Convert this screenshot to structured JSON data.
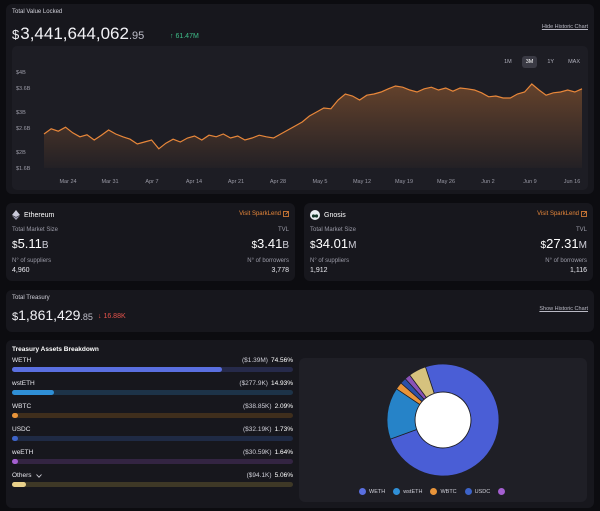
{
  "tvl": {
    "label": "Total Value Locked",
    "currency": "$",
    "value_main": "3,441,644,062",
    "value_decimals": ".95",
    "delta": "↑ 61.47M",
    "hide_chart_label": "Hide Historic Chart",
    "ranges": [
      "1M",
      "3M",
      "1Y",
      "MAX"
    ],
    "active_range": "3M"
  },
  "chart_data": {
    "type": "area",
    "title": "",
    "xlabel": "",
    "ylabel": "",
    "x_ticks": [
      "Mar 24",
      "Mar 31",
      "Apr 7",
      "Apr 14",
      "Apr 21",
      "Apr 28",
      "May 5",
      "May 12",
      "May 19",
      "May 26",
      "Jun 2",
      "Jun 9",
      "Jun 16"
    ],
    "y_ticks": [
      "$1.6B",
      "$2B",
      "$2.6B",
      "$3B",
      "$3.6B",
      "$4B"
    ],
    "ylim": [
      1.6,
      4.0
    ],
    "unit": "$B",
    "grid": false,
    "color": "#e8873a",
    "series": [
      {
        "values": [
          2.45,
          2.58,
          2.52,
          2.62,
          2.48,
          2.38,
          2.43,
          2.3,
          2.42,
          2.55,
          2.45,
          2.38,
          2.32,
          2.2,
          2.25,
          2.3,
          2.08,
          2.22,
          2.32,
          2.25,
          2.35,
          2.4,
          2.3,
          2.42,
          2.38,
          2.45,
          2.35,
          2.4,
          2.3,
          2.35,
          2.42,
          2.38,
          2.35,
          2.45,
          2.55,
          2.65,
          2.75,
          2.9,
          3.0,
          3.1,
          3.08,
          3.3,
          3.45,
          3.4,
          3.3,
          3.42,
          3.45,
          3.5,
          3.58,
          3.65,
          3.62,
          3.55,
          3.5,
          3.58,
          3.62,
          3.55,
          3.6,
          3.52,
          3.6,
          3.58,
          3.55,
          3.48,
          3.38,
          3.4,
          3.35,
          3.35,
          3.45,
          3.5,
          3.7,
          3.55,
          3.42,
          3.48,
          3.5,
          3.55,
          3.5,
          3.58
        ]
      }
    ]
  },
  "ethereum": {
    "name": "Ethereum",
    "visit_label": "Visit SparkLend",
    "market_size_label": "Total Market Size",
    "tvl_label": "TVL",
    "currency": "$",
    "market_size": "5.11",
    "market_size_suffix": "B",
    "tvl": "3.41",
    "tvl_suffix": "B",
    "suppliers_label": "N° of suppliers",
    "borrowers_label": "N° of borrowers",
    "suppliers": "4,960",
    "borrowers": "3,778"
  },
  "gnosis": {
    "name": "Gnosis",
    "visit_label": "Visit SparkLend",
    "market_size_label": "Total Market Size",
    "tvl_label": "TVL",
    "currency": "$",
    "market_size": "34.01",
    "market_size_suffix": "M",
    "tvl": "27.31",
    "tvl_suffix": "M",
    "suppliers_label": "N° of suppliers",
    "borrowers_label": "N° of borrowers",
    "suppliers": "1,912",
    "borrowers": "1,116"
  },
  "treasury": {
    "label": "Total Treasury",
    "currency": "$",
    "value_main": "1,861,429",
    "value_decimals": ".85",
    "delta": "↓ 16.88K",
    "show_chart_label": "Show Historic Chart"
  },
  "breakdown": {
    "title": "Treasury Assets Breakdown",
    "assets": [
      {
        "name": "WETH",
        "amount": "($1.39M)",
        "pct": "74.56%",
        "fraction": 0.7456,
        "color": "#5a6fe0",
        "track": "#262a4a"
      },
      {
        "name": "wstETH",
        "amount": "($277.9K)",
        "pct": "14.93%",
        "fraction": 0.1493,
        "color": "#2f8fd6",
        "track": "#1d3348"
      },
      {
        "name": "WBTC",
        "amount": "($38.85K)",
        "pct": "2.09%",
        "fraction": 0.0209,
        "color": "#e8943a",
        "track": "#3f2e1c"
      },
      {
        "name": "USDC",
        "amount": "($32.19K)",
        "pct": "1.73%",
        "fraction": 0.0173,
        "color": "#3d63c8",
        "track": "#1f2a44"
      },
      {
        "name": "weETH",
        "amount": "($30.59K)",
        "pct": "1.64%",
        "fraction": 0.0164,
        "color": "#a45fd0",
        "track": "#332442"
      },
      {
        "name": "Others",
        "amount": "($94.1K)",
        "pct": "5.06%",
        "fraction": 0.0506,
        "color": "#e8d08a",
        "track": "#3e3826"
      }
    ],
    "legend": [
      {
        "name": "WETH",
        "color": "#5a6fe0"
      },
      {
        "name": "wstETH",
        "color": "#2f8fd6"
      },
      {
        "name": "WBTC",
        "color": "#e8943a"
      },
      {
        "name": "USDC",
        "color": "#3d63c8"
      },
      {
        "name": "",
        "color": "#a45fd0"
      }
    ],
    "donut_slices": [
      {
        "fraction": 0.7456,
        "color": "#4a5ed6"
      },
      {
        "fraction": 0.1493,
        "color": "#2683c8"
      },
      {
        "fraction": 0.0209,
        "color": "#e8943a"
      },
      {
        "fraction": 0.0173,
        "color": "#2c4fa8"
      },
      {
        "fraction": 0.0164,
        "color": "#8a52b8"
      },
      {
        "fraction": 0.0506,
        "color": "#d6c27e"
      }
    ]
  },
  "icons": {
    "external_link": "external-link-icon",
    "ethereum": "ethereum-logo",
    "gnosis": "gnosis-logo",
    "chevron": "chevron-down-icon"
  }
}
